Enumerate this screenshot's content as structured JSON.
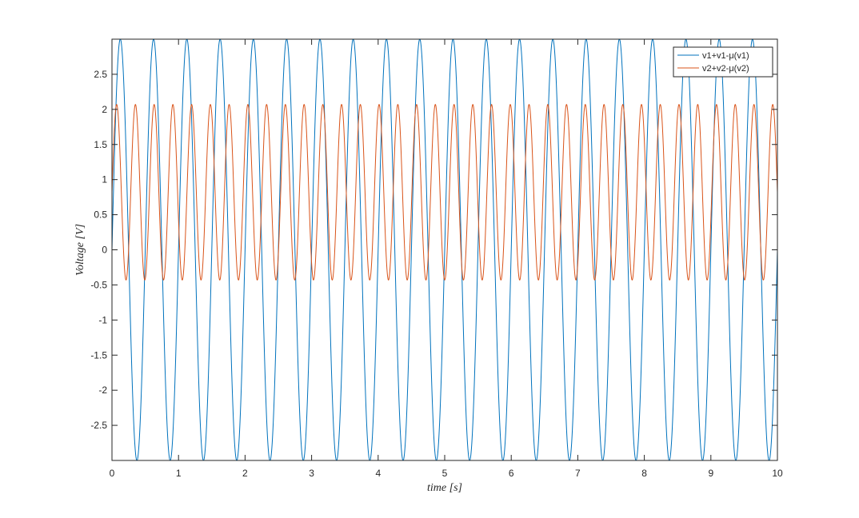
{
  "chart_data": {
    "type": "line",
    "title": "",
    "xlabel": "time [s]",
    "ylabel": "Voltage [V]",
    "xlim": [
      0,
      10
    ],
    "ylim": [
      -3,
      3
    ],
    "x_ticks": [
      0,
      1,
      2,
      3,
      4,
      5,
      6,
      7,
      8,
      9,
      10
    ],
    "x_tick_labels": [
      "0",
      "1",
      "2",
      "3",
      "4",
      "5",
      "6",
      "7",
      "8",
      "9",
      "10"
    ],
    "y_ticks": [
      -2.5,
      -2,
      -1.5,
      -1,
      -0.5,
      0,
      0.5,
      1,
      1.5,
      2,
      2.5
    ],
    "y_tick_labels": [
      "-2.5",
      "-2",
      "-1.5",
      "-1",
      "-0.5",
      "0",
      "0.5",
      "1",
      "1.5",
      "2",
      "2.5"
    ],
    "grid": false,
    "legend_position": "top-right",
    "series": [
      {
        "name": "v1+v1-μ(v1)",
        "color": "#0072BD",
        "form": "sine",
        "amplitude": 3,
        "frequency_hz": 2,
        "phase_rad": 0,
        "offset": 0,
        "sampling": {
          "x_start": 0,
          "x_end": 10,
          "step": 0.002
        }
      },
      {
        "name": "v2+v2-μ(v2)",
        "color": "#D95319",
        "form": "sine",
        "amplitude": 1.25,
        "frequency_hz": 3.55,
        "phase_rad": 0,
        "offset": 0.82,
        "sampling": {
          "x_start": 0,
          "x_end": 10,
          "step": 0.002
        }
      }
    ]
  }
}
